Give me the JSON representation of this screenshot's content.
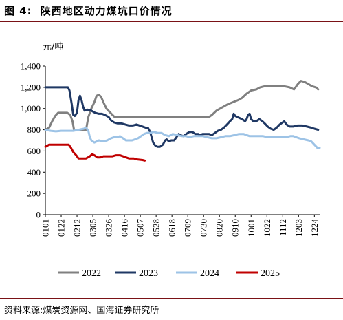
{
  "header": {
    "figure_label": "图 4:",
    "title": "陕西地区动力煤坑口价情况"
  },
  "footer": {
    "source": "资料来源:煤炭资源网、国海证券研究所"
  },
  "chart_data": {
    "type": "line",
    "title": "陕西地区动力煤坑口价情况",
    "unit": "元/吨",
    "xlabel": "",
    "ylabel": "元/吨",
    "ylim": [
      0,
      1400
    ],
    "yticks": [
      0,
      200,
      400,
      600,
      800,
      1000,
      1200,
      1400
    ],
    "ytick_labels": [
      "0",
      "200",
      "400",
      "600",
      "800",
      "1,000",
      "1,200",
      "1,400"
    ],
    "x_range": [
      1,
      365
    ],
    "xticks": [
      1,
      22,
      43,
      64,
      85,
      106,
      127,
      148,
      169,
      190,
      211,
      232,
      253,
      274,
      295,
      316,
      337,
      358
    ],
    "xtick_labels": [
      "0101",
      "0122",
      "0212",
      "0305",
      "0326",
      "0416",
      "0507",
      "0528",
      "0618",
      "0709",
      "0730",
      "0820",
      "0910",
      "1001",
      "1022",
      "1112",
      "1203",
      "1224"
    ],
    "grid": false,
    "legend_position": "bottom",
    "series": [
      {
        "name": "2022",
        "color": "#808080",
        "points": [
          [
            1,
            800
          ],
          [
            6,
            820
          ],
          [
            10,
            880
          ],
          [
            14,
            930
          ],
          [
            18,
            960
          ],
          [
            24,
            960
          ],
          [
            30,
            960
          ],
          [
            34,
            940
          ],
          [
            37,
            880
          ],
          [
            39,
            800
          ],
          [
            46,
            800
          ],
          [
            50,
            800
          ],
          [
            55,
            800
          ],
          [
            58,
            920
          ],
          [
            62,
            1000
          ],
          [
            66,
            1060
          ],
          [
            69,
            1120
          ],
          [
            72,
            1130
          ],
          [
            75,
            1110
          ],
          [
            78,
            1060
          ],
          [
            82,
            1000
          ],
          [
            86,
            970
          ],
          [
            90,
            940
          ],
          [
            93,
            920
          ],
          [
            100,
            920
          ],
          [
            120,
            920
          ],
          [
            150,
            920
          ],
          [
            180,
            920
          ],
          [
            205,
            920
          ],
          [
            218,
            920
          ],
          [
            222,
            940
          ],
          [
            228,
            980
          ],
          [
            233,
            1000
          ],
          [
            238,
            1020
          ],
          [
            243,
            1040
          ],
          [
            250,
            1060
          ],
          [
            257,
            1080
          ],
          [
            262,
            1100
          ],
          [
            268,
            1140
          ],
          [
            274,
            1170
          ],
          [
            281,
            1180
          ],
          [
            286,
            1200
          ],
          [
            292,
            1210
          ],
          [
            300,
            1210
          ],
          [
            310,
            1210
          ],
          [
            318,
            1210
          ],
          [
            325,
            1200
          ],
          [
            331,
            1180
          ],
          [
            336,
            1230
          ],
          [
            340,
            1260
          ],
          [
            345,
            1250
          ],
          [
            350,
            1230
          ],
          [
            355,
            1210
          ],
          [
            360,
            1200
          ],
          [
            363,
            1180
          ]
        ]
      },
      {
        "name": "2023",
        "color": "#1f3864",
        "points": [
          [
            1,
            1200
          ],
          [
            10,
            1200
          ],
          [
            20,
            1200
          ],
          [
            26,
            1200
          ],
          [
            31,
            1200
          ],
          [
            33,
            1170
          ],
          [
            36,
            1040
          ],
          [
            38,
            940
          ],
          [
            40,
            930
          ],
          [
            43,
            960
          ],
          [
            45,
            1080
          ],
          [
            47,
            1120
          ],
          [
            49,
            1080
          ],
          [
            51,
            1020
          ],
          [
            53,
            980
          ],
          [
            57,
            990
          ],
          [
            62,
            980
          ],
          [
            67,
            960
          ],
          [
            72,
            950
          ],
          [
            76,
            950
          ],
          [
            80,
            940
          ],
          [
            85,
            920
          ],
          [
            88,
            890
          ],
          [
            92,
            870
          ],
          [
            97,
            860
          ],
          [
            102,
            860
          ],
          [
            107,
            850
          ],
          [
            112,
            840
          ],
          [
            117,
            840
          ],
          [
            122,
            850
          ],
          [
            126,
            840
          ],
          [
            130,
            830
          ],
          [
            134,
            820
          ],
          [
            137,
            820
          ],
          [
            140,
            780
          ],
          [
            144,
            680
          ],
          [
            147,
            650
          ],
          [
            150,
            640
          ],
          [
            153,
            640
          ],
          [
            157,
            660
          ],
          [
            160,
            700
          ],
          [
            162,
            710
          ],
          [
            165,
            690
          ],
          [
            168,
            700
          ],
          [
            172,
            700
          ],
          [
            175,
            730
          ],
          [
            178,
            760
          ],
          [
            180,
            750
          ],
          [
            184,
            740
          ],
          [
            188,
            760
          ],
          [
            192,
            780
          ],
          [
            196,
            780
          ],
          [
            200,
            760
          ],
          [
            204,
            760
          ],
          [
            206,
            750
          ],
          [
            210,
            760
          ],
          [
            214,
            760
          ],
          [
            218,
            760
          ],
          [
            222,
            750
          ],
          [
            226,
            770
          ],
          [
            230,
            790
          ],
          [
            234,
            800
          ],
          [
            238,
            820
          ],
          [
            242,
            850
          ],
          [
            246,
            880
          ],
          [
            249,
            900
          ],
          [
            251,
            950
          ],
          [
            253,
            930
          ],
          [
            256,
            920
          ],
          [
            262,
            900
          ],
          [
            266,
            880
          ],
          [
            268,
            900
          ],
          [
            270,
            940
          ],
          [
            272,
            950
          ],
          [
            274,
            900
          ],
          [
            277,
            880
          ],
          [
            281,
            880
          ],
          [
            285,
            900
          ],
          [
            289,
            880
          ],
          [
            292,
            860
          ],
          [
            296,
            830
          ],
          [
            300,
            810
          ],
          [
            304,
            800
          ],
          [
            308,
            820
          ],
          [
            312,
            850
          ],
          [
            316,
            870
          ],
          [
            318,
            880
          ],
          [
            321,
            850
          ],
          [
            325,
            830
          ],
          [
            330,
            830
          ],
          [
            336,
            840
          ],
          [
            342,
            840
          ],
          [
            348,
            830
          ],
          [
            354,
            820
          ],
          [
            358,
            810
          ],
          [
            363,
            800
          ]
        ]
      },
      {
        "name": "2024",
        "color": "#9dc3e6",
        "points": [
          [
            1,
            800
          ],
          [
            8,
            790
          ],
          [
            15,
            785
          ],
          [
            22,
            790
          ],
          [
            30,
            790
          ],
          [
            38,
            790
          ],
          [
            45,
            800
          ],
          [
            52,
            810
          ],
          [
            55,
            820
          ],
          [
            58,
            790
          ],
          [
            60,
            730
          ],
          [
            62,
            700
          ],
          [
            66,
            680
          ],
          [
            72,
            700
          ],
          [
            78,
            690
          ],
          [
            83,
            700
          ],
          [
            88,
            720
          ],
          [
            92,
            730
          ],
          [
            97,
            730
          ],
          [
            100,
            740
          ],
          [
            104,
            720
          ],
          [
            108,
            700
          ],
          [
            112,
            700
          ],
          [
            116,
            700
          ],
          [
            120,
            710
          ],
          [
            124,
            720
          ],
          [
            128,
            740
          ],
          [
            132,
            760
          ],
          [
            136,
            770
          ],
          [
            140,
            770
          ],
          [
            145,
            780
          ],
          [
            150,
            770
          ],
          [
            155,
            770
          ],
          [
            160,
            750
          ],
          [
            165,
            740
          ],
          [
            170,
            760
          ],
          [
            176,
            750
          ],
          [
            182,
            740
          ],
          [
            188,
            740
          ],
          [
            192,
            730
          ],
          [
            198,
            740
          ],
          [
            204,
            740
          ],
          [
            210,
            740
          ],
          [
            216,
            730
          ],
          [
            222,
            720
          ],
          [
            228,
            720
          ],
          [
            234,
            730
          ],
          [
            240,
            740
          ],
          [
            246,
            740
          ],
          [
            252,
            750
          ],
          [
            258,
            760
          ],
          [
            264,
            760
          ],
          [
            268,
            750
          ],
          [
            272,
            740
          ],
          [
            278,
            740
          ],
          [
            284,
            740
          ],
          [
            290,
            740
          ],
          [
            296,
            730
          ],
          [
            302,
            730
          ],
          [
            308,
            730
          ],
          [
            314,
            730
          ],
          [
            320,
            730
          ],
          [
            326,
            740
          ],
          [
            330,
            740
          ],
          [
            334,
            730
          ],
          [
            338,
            720
          ],
          [
            344,
            710
          ],
          [
            350,
            700
          ],
          [
            354,
            690
          ],
          [
            358,
            660
          ],
          [
            362,
            630
          ],
          [
            365,
            630
          ]
        ]
      },
      {
        "name": "2025",
        "color": "#c00000",
        "points": [
          [
            1,
            640
          ],
          [
            6,
            660
          ],
          [
            12,
            660
          ],
          [
            20,
            660
          ],
          [
            28,
            660
          ],
          [
            32,
            660
          ],
          [
            35,
            630
          ],
          [
            38,
            590
          ],
          [
            42,
            560
          ],
          [
            45,
            530
          ],
          [
            50,
            530
          ],
          [
            55,
            530
          ],
          [
            60,
            550
          ],
          [
            63,
            570
          ],
          [
            66,
            560
          ],
          [
            70,
            540
          ],
          [
            74,
            540
          ],
          [
            78,
            550
          ],
          [
            84,
            550
          ],
          [
            90,
            550
          ],
          [
            95,
            560
          ],
          [
            100,
            560
          ],
          [
            104,
            550
          ],
          [
            108,
            540
          ],
          [
            112,
            530
          ],
          [
            118,
            530
          ],
          [
            124,
            520
          ],
          [
            130,
            515
          ],
          [
            133,
            510
          ]
        ]
      }
    ]
  }
}
